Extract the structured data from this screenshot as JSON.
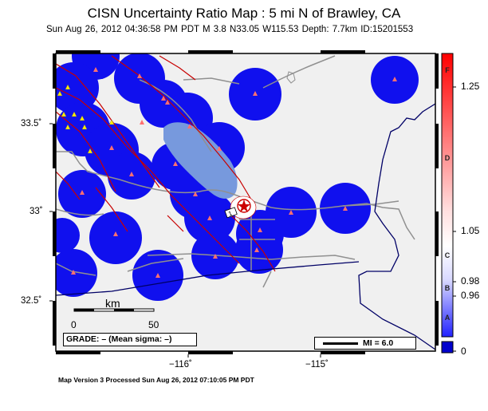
{
  "title": "CISN Uncertainty Ratio Map : 5 mi N of Brawley, CA",
  "subtitle": "Sun Aug 26, 2012 04:36:58 PM PDT   M 3.8   N33.05 W115.53   Depth: 7.7km   ID:15201553",
  "axes": {
    "lat_ticks": [
      "33.5˚",
      "33˚",
      "32.5˚"
    ],
    "lon_ticks": [
      "−116˚",
      "−115˚"
    ]
  },
  "colorbar": {
    "values": [
      "1.25",
      "1.05",
      "0.98",
      "0.96",
      "0"
    ],
    "grades": [
      "F",
      "D",
      "C",
      "B",
      "A"
    ]
  },
  "scale_bar": {
    "unit": "km",
    "labels": [
      "0",
      "50"
    ]
  },
  "grade_box": "GRADE: – (Mean sigma: –)",
  "mi_legend": "MI = 6.0",
  "footer": "Map Version 3 Processed Sun Aug 26, 2012 07:10:05 PM PDT",
  "colors": {
    "ocean_bg": "#f0f0f0",
    "station_blue": "#1010ee",
    "lake": "#7799dd",
    "fault": "#c80000",
    "road": "#909090",
    "border": "#000066"
  },
  "epicenter": {
    "label": "1"
  }
}
